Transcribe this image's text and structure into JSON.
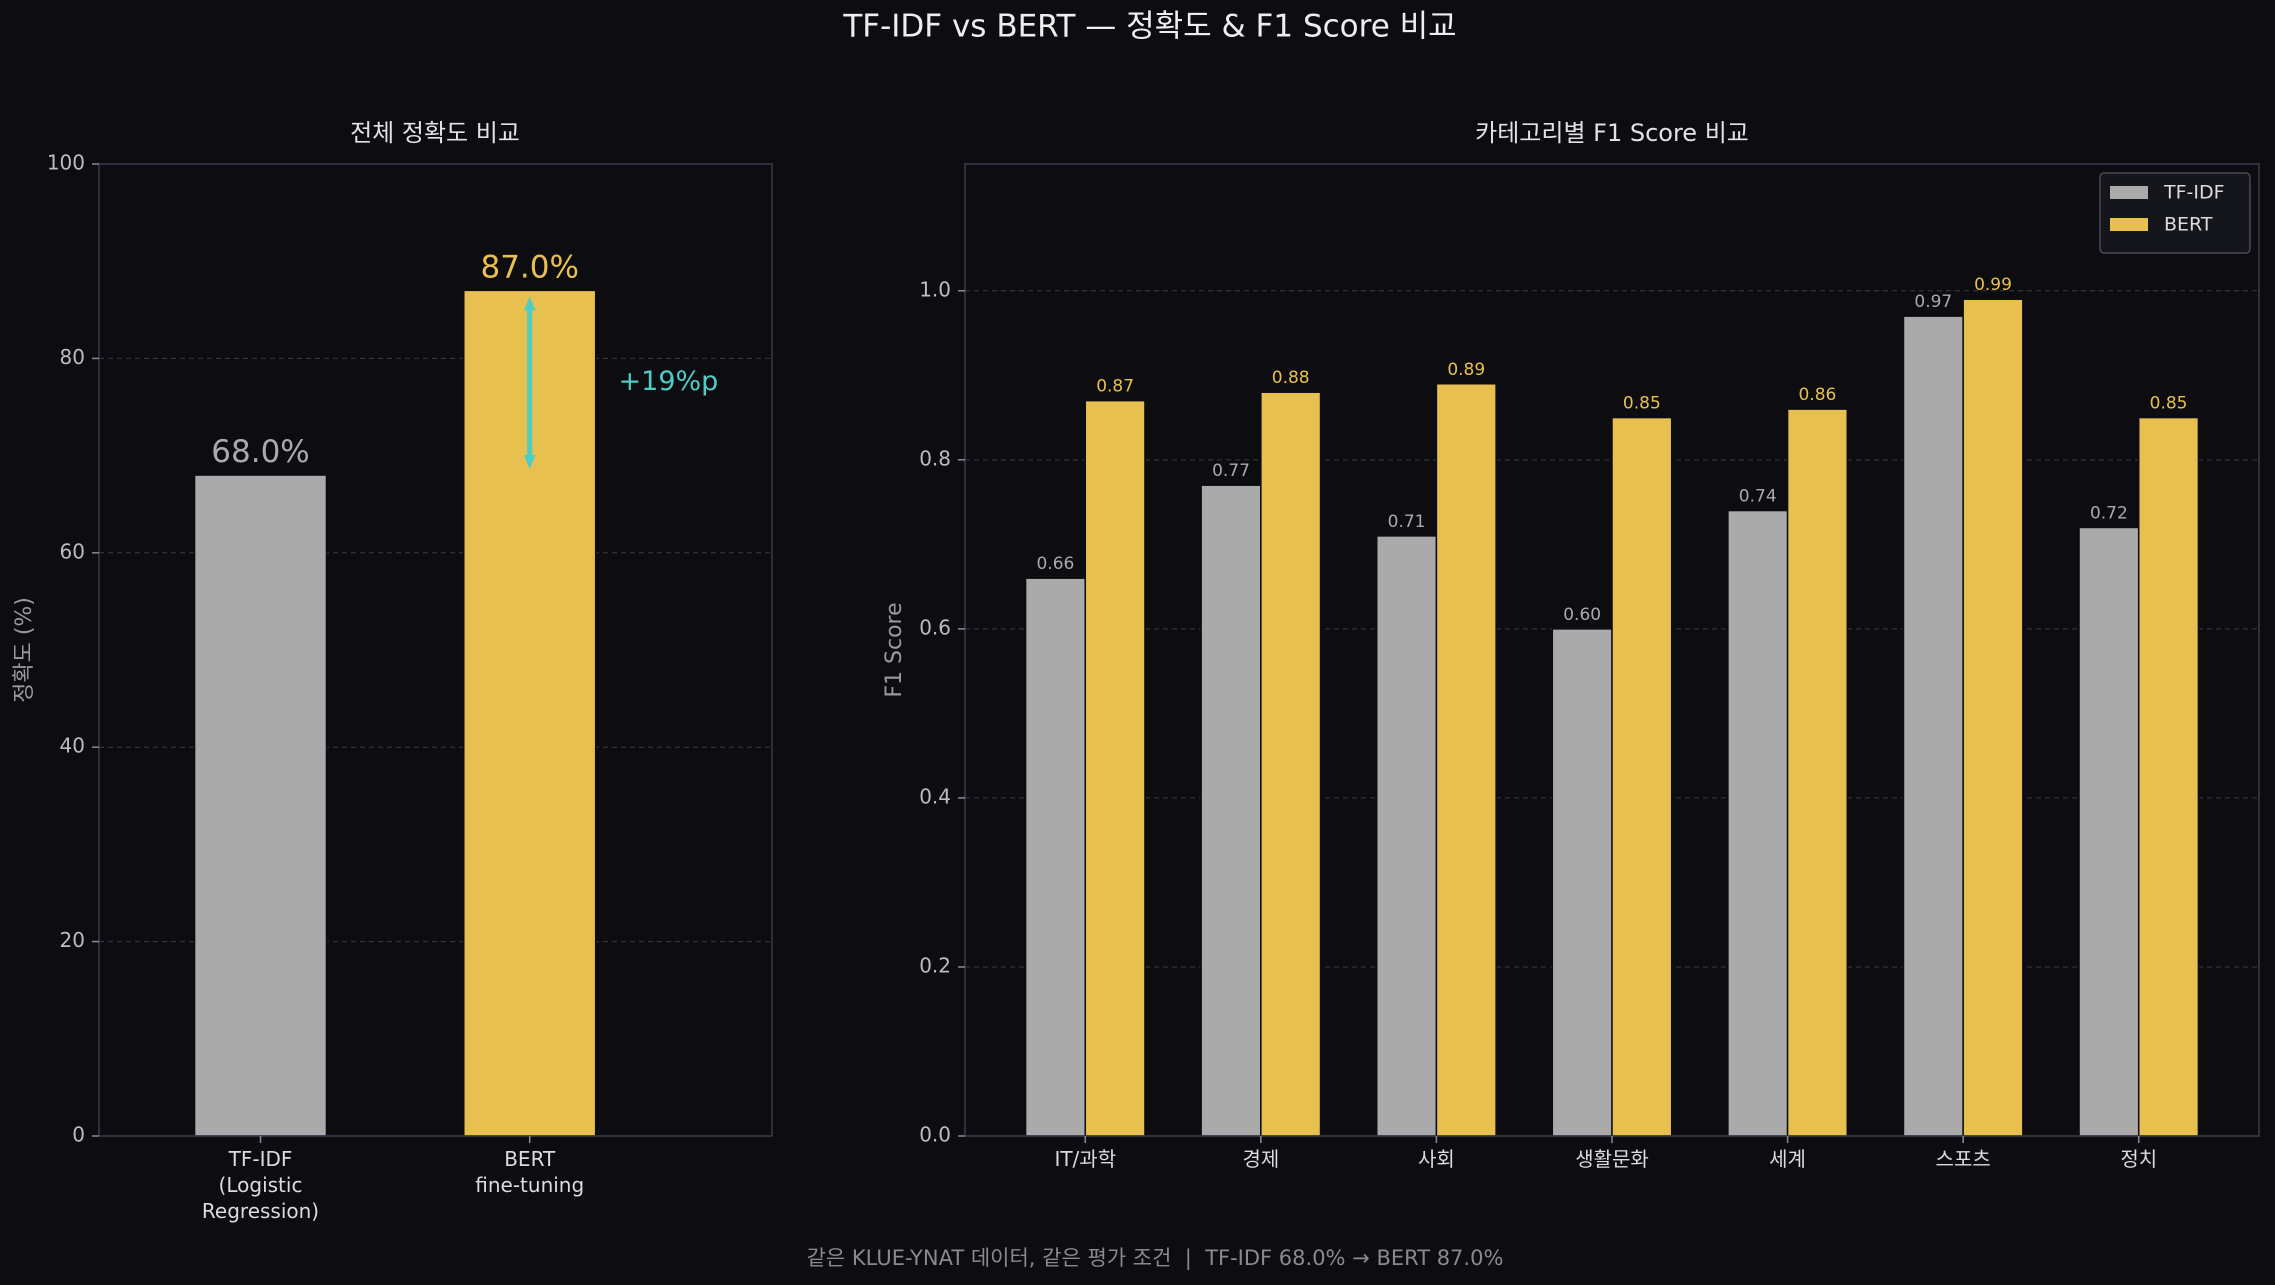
{
  "title": "TF-IDF vs BERT — 정확도 & F1 Score 비교",
  "footer": "같은 KLUE-YNAT 데이터, 같은 평가 조건  |  TF-IDF 68.0% → BERT 87.0%",
  "colors": {
    "background": "#0c0c11"
  },
  "chart_data": [
    {
      "type": "bar",
      "title": "전체 정확도 비교",
      "ylabel": "정확도 (%)",
      "categories": [
        "TF-IDF\n(Logistic\nRegression)",
        "BERT\nfine-tuning"
      ],
      "values": [
        68.0,
        87.0
      ],
      "value_labels": [
        "68.0%",
        "87.0%"
      ],
      "bar_colors": [
        "#aaaaaa",
        "#e8c050"
      ],
      "ylim": [
        0,
        100
      ],
      "yticks": [
        0,
        20,
        40,
        60,
        80,
        100
      ],
      "ytick_labels": [
        "0",
        "20",
        "40",
        "60",
        "80",
        "100"
      ],
      "grid": true,
      "annotation": {
        "text": "+19%p",
        "from": 68.0,
        "to": 87.0,
        "color": "#4ecdc4"
      }
    },
    {
      "type": "bar",
      "title": "카테고리별 F1 Score 비교",
      "ylabel": "F1 Score",
      "categories": [
        "IT/과학",
        "경제",
        "사회",
        "생활문화",
        "세계",
        "스포츠",
        "정치"
      ],
      "series": [
        {
          "name": "TF-IDF",
          "color": "#aaaaaa",
          "values": [
            0.66,
            0.77,
            0.71,
            0.6,
            0.74,
            0.97,
            0.72
          ],
          "value_labels": [
            "0.66",
            "0.77",
            "0.71",
            "0.60",
            "0.74",
            "0.97",
            "0.72"
          ]
        },
        {
          "name": "BERT",
          "color": "#e8c050",
          "values": [
            0.87,
            0.88,
            0.89,
            0.85,
            0.86,
            0.99,
            0.85
          ],
          "value_labels": [
            "0.87",
            "0.88",
            "0.89",
            "0.85",
            "0.86",
            "0.99",
            "0.85"
          ]
        }
      ],
      "ylim": [
        0,
        1.15
      ],
      "yticks": [
        0.0,
        0.2,
        0.4,
        0.6,
        0.8,
        1.0
      ],
      "ytick_labels": [
        "0.0",
        "0.2",
        "0.4",
        "0.6",
        "0.8",
        "1.0"
      ],
      "grid": true,
      "legend": "upper right"
    }
  ]
}
